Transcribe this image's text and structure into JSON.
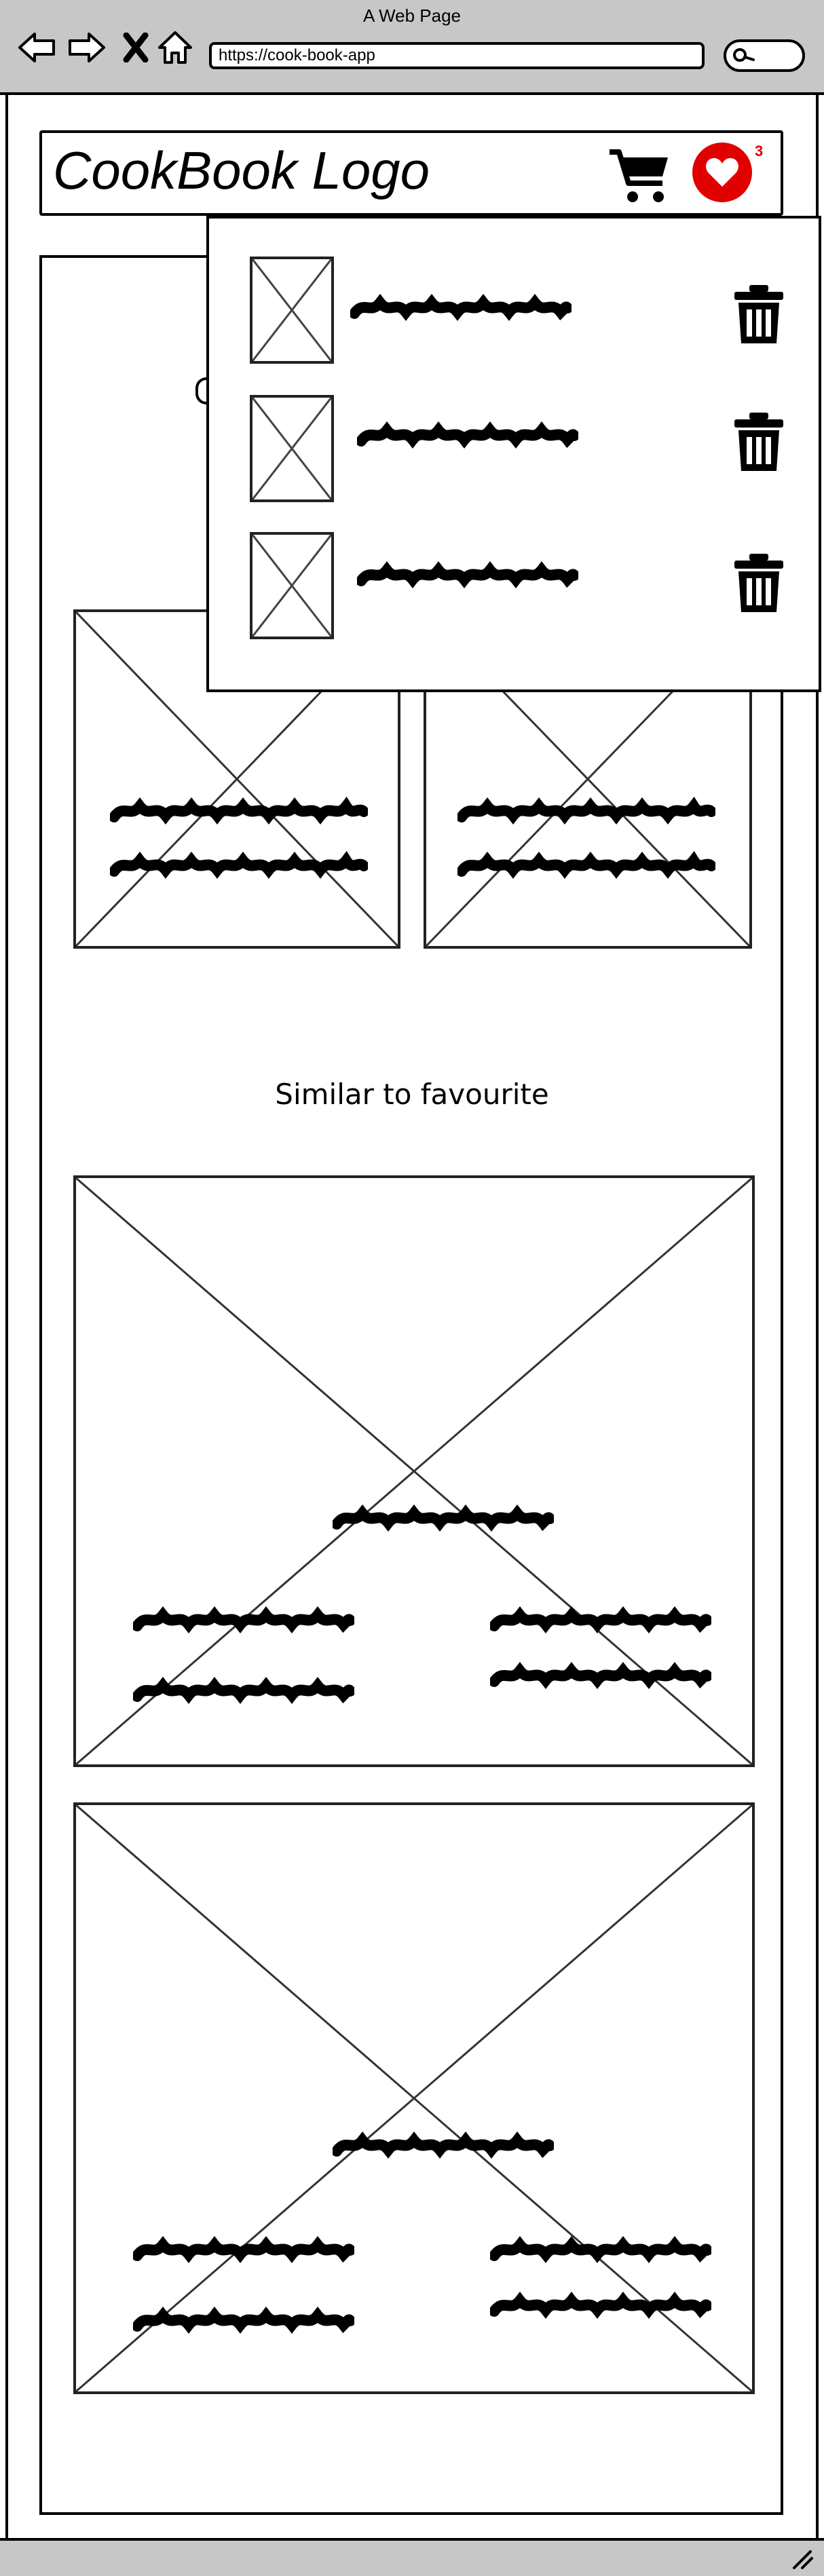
{
  "window": {
    "title": "A Web Page"
  },
  "browser": {
    "url": "https://cook-book-app"
  },
  "header": {
    "logo": "CookBook Logo",
    "favourites_count": "3"
  },
  "favourites_dropdown": {
    "items": [
      {
        "thumbnail": "image-placeholder",
        "delete_icon": "trash-icon"
      },
      {
        "thumbnail": "image-placeholder",
        "delete_icon": "trash-icon"
      },
      {
        "thumbnail": "image-placeholder",
        "delete_icon": "trash-icon"
      }
    ]
  },
  "sections": {
    "similar_heading": "Similar to favourite"
  },
  "colors": {
    "accent": "#e00000",
    "chrome": "#c7c7c7",
    "ink": "#000000"
  }
}
